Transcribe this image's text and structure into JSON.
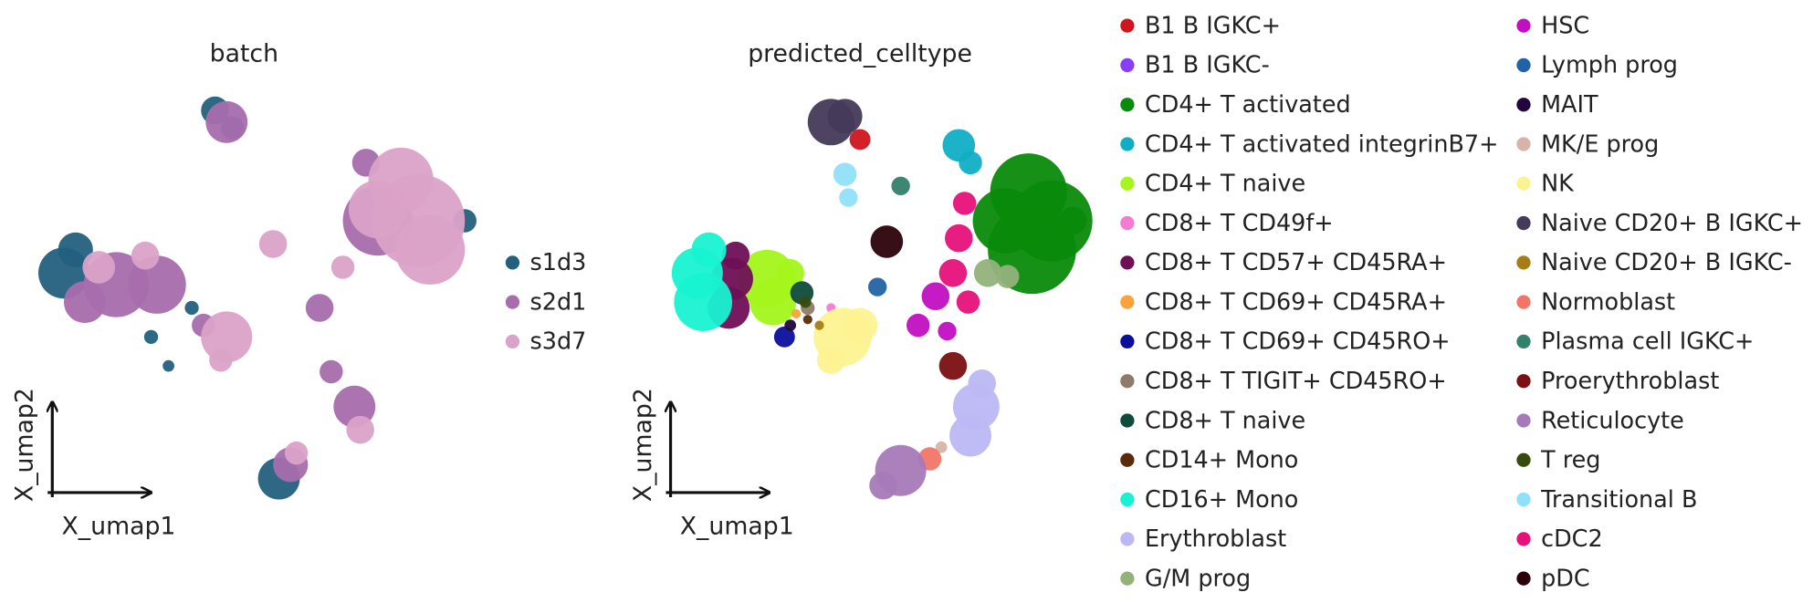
{
  "chart_data": [
    {
      "type": "scatter",
      "title": "batch",
      "xlabel": "X_umap1",
      "ylabel": "X_umap2",
      "xlim": [
        0,
        390
      ],
      "ylim": [
        0,
        350
      ],
      "series": [
        {
          "name": "s1d3",
          "color": "#23607e",
          "x": [
            375,
            30,
            40,
            160,
            175,
            215,
            140,
            105,
            120
          ],
          "y": [
            240,
            195,
            215,
            335,
            320,
            18,
            165,
            140,
            115
          ],
          "sizes": [
            10,
            22,
            15,
            12,
            10,
            18,
            6,
            6,
            5
          ]
        },
        {
          "name": "s2d1",
          "color": "#a76dad",
          "x": [
            75,
            110,
            170,
            250,
            280,
            260,
            225,
            290,
            150,
            300,
            48
          ],
          "y": [
            185,
            185,
            325,
            165,
            80,
            110,
            30,
            290,
            150,
            240,
            170
          ],
          "sizes": [
            28,
            25,
            18,
            12,
            18,
            10,
            15,
            12,
            10,
            30,
            18
          ]
        },
        {
          "name": "s3d7",
          "color": "#dba2c8",
          "x": [
            335,
            320,
            345,
            170,
            60,
            100,
            285,
            230,
            270,
            210,
            165,
            300
          ],
          "y": [
            240,
            275,
            215,
            140,
            200,
            210,
            60,
            40,
            200,
            220,
            120,
            250
          ],
          "sizes": [
            40,
            28,
            30,
            22,
            14,
            12,
            12,
            10,
            10,
            12,
            10,
            25
          ]
        }
      ]
    },
    {
      "type": "scatter",
      "title": "predicted_celltype",
      "xlabel": "X_umap1",
      "ylabel": "X_umap2",
      "xlim": [
        0,
        390
      ],
      "ylim": [
        0,
        350
      ],
      "series": [
        {
          "name": "B1 B IGKC+",
          "color": "#d0161d",
          "x": [
            185
          ],
          "y": [
            310
          ],
          "sizes": [
            9
          ]
        },
        {
          "name": "B1 B IGKC-",
          "color": "#8a3ef4",
          "x": [
            175
          ],
          "y": [
            322
          ],
          "sizes": [
            6
          ]
        },
        {
          "name": "CD4+ T activated",
          "color": "#0a8a0a",
          "x": [
            330,
            333,
            350,
            310,
            368
          ],
          "y": [
            265,
            215,
            240,
            240,
            240
          ],
          "sizes": [
            33,
            38,
            35,
            28,
            12
          ]
        },
        {
          "name": "CD4+ T activated integrinB7+",
          "color": "#10aec4",
          "x": [
            270,
            280
          ],
          "y": [
            305,
            290
          ],
          "sizes": [
            14,
            10
          ]
        },
        {
          "name": "CD4+ T naive",
          "color": "#a4f61c",
          "x": [
            105,
            110,
            125
          ],
          "y": [
            190,
            170,
            195
          ],
          "sizes": [
            25,
            20,
            12
          ]
        },
        {
          "name": "CD8+ T CD49f+",
          "color": "#f57ad2",
          "x": [
            160
          ],
          "y": [
            165
          ],
          "sizes": [
            4
          ]
        },
        {
          "name": "CD8+ T CD57+ CD45RA+",
          "color": "#6f0f56",
          "x": [
            75,
            72,
            78
          ],
          "y": [
            190,
            165,
            210
          ],
          "sizes": [
            18,
            18,
            12
          ]
        },
        {
          "name": "CD8+ T CD69+ CD45RA+",
          "color": "#f9a33a",
          "x": [
            130
          ],
          "y": [
            160
          ],
          "sizes": [
            4
          ]
        },
        {
          "name": "CD8+ T CD69+ CD45RO+",
          "color": "#0a0f9c",
          "x": [
            120
          ],
          "y": [
            140
          ],
          "sizes": [
            9
          ]
        },
        {
          "name": "CD8+ T TIGIT+ CD45RO+",
          "color": "#8e7a6a",
          "x": [
            140
          ],
          "y": [
            165
          ],
          "sizes": [
            6
          ]
        },
        {
          "name": "CD8+ T naive",
          "color": "#0f4b3b",
          "x": [
            135
          ],
          "y": [
            178
          ],
          "sizes": [
            10
          ]
        },
        {
          "name": "CD14+ Mono",
          "color": "#5a2b0b",
          "x": [
            140
          ],
          "y": [
            155
          ],
          "sizes": [
            4
          ]
        },
        {
          "name": "CD16+ Mono",
          "color": "#18f2d2",
          "x": [
            45,
            50,
            55
          ],
          "y": [
            195,
            170,
            215
          ],
          "sizes": [
            22,
            25,
            15
          ]
        },
        {
          "name": "Erythroblast",
          "color": "#bcb8f4",
          "x": [
            285,
            280,
            290
          ],
          "y": [
            80,
            55,
            100
          ],
          "sizes": [
            20,
            18,
            12
          ]
        },
        {
          "name": "G/M prog",
          "color": "#92b27a",
          "x": [
            295,
            312
          ],
          "y": [
            195,
            192
          ],
          "sizes": [
            12,
            10
          ]
        },
        {
          "name": "HSC",
          "color": "#c20fc1",
          "x": [
            250,
            235,
            260
          ],
          "y": [
            175,
            150,
            145
          ],
          "sizes": [
            12,
            10,
            8
          ]
        },
        {
          "name": "Lymph prog",
          "color": "#2263a7",
          "x": [
            200
          ],
          "y": [
            183
          ],
          "sizes": [
            8
          ]
        },
        {
          "name": "MAIT",
          "color": "#23063d",
          "x": [
            125
          ],
          "y": [
            150
          ],
          "sizes": [
            5
          ]
        },
        {
          "name": "MK/E prog",
          "color": "#d7b3a9",
          "x": [
            255
          ],
          "y": [
            45
          ],
          "sizes": [
            5
          ]
        },
        {
          "name": "NK",
          "color": "#fdf291",
          "x": [
            170,
            185,
            160
          ],
          "y": [
            140,
            150,
            120
          ],
          "sizes": [
            25,
            15,
            12
          ]
        },
        {
          "name": "Naive CD20+ B IGKC+",
          "color": "#453a5a",
          "x": [
            160,
            172
          ],
          "y": [
            325,
            330
          ],
          "sizes": [
            20,
            15
          ]
        },
        {
          "name": "Naive CD20+ B IGKC-",
          "color": "#a67d14",
          "x": [
            150
          ],
          "y": [
            150
          ],
          "sizes": [
            4
          ]
        },
        {
          "name": "Normoblast",
          "color": "#f17667",
          "x": [
            245
          ],
          "y": [
            35
          ],
          "sizes": [
            10
          ]
        },
        {
          "name": "Plasma cell IGKC+",
          "color": "#33806b",
          "x": [
            220
          ],
          "y": [
            270
          ],
          "sizes": [
            8
          ]
        },
        {
          "name": "Proerythroblast",
          "color": "#7b0f12",
          "x": [
            265
          ],
          "y": [
            115
          ],
          "sizes": [
            12
          ]
        },
        {
          "name": "Reticulocyte",
          "color": "#a67ab8",
          "x": [
            220,
            205
          ],
          "y": [
            25,
            12
          ],
          "sizes": [
            22,
            12
          ]
        },
        {
          "name": "T reg",
          "color": "#374b0c",
          "x": [
            138
          ],
          "y": [
            170
          ],
          "sizes": [
            5
          ]
        },
        {
          "name": "Transitional B",
          "color": "#8fe0f9",
          "x": [
            172,
            175
          ],
          "y": [
            280,
            260
          ],
          "sizes": [
            10,
            8
          ]
        },
        {
          "name": "cDC2",
          "color": "#e7117b",
          "x": [
            275,
            270,
            265,
            278
          ],
          "y": [
            255,
            225,
            195,
            170
          ],
          "sizes": [
            10,
            12,
            12,
            10
          ]
        },
        {
          "name": "pDC",
          "color": "#2c0209",
          "x": [
            208
          ],
          "y": [
            222
          ],
          "sizes": [
            14
          ]
        }
      ]
    }
  ]
}
